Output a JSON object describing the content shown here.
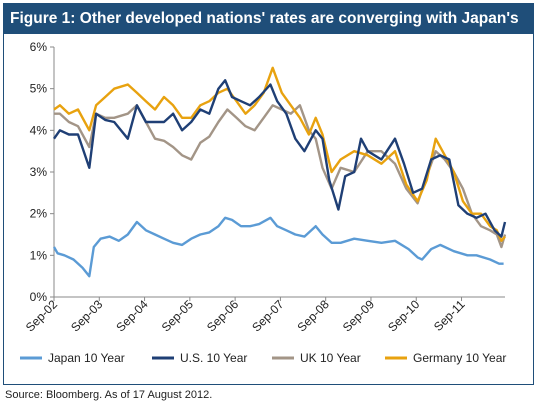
{
  "title": "Figure 1: Other developed nations' rates are converging with Japan's",
  "source": "Source: Bloomberg. As of 17 August 2012.",
  "chart_data": {
    "type": "line",
    "title": "Figure 1: Other developed nations' rates are converging with Japan's",
    "xlabel": "",
    "ylabel": "",
    "ylim": [
      0,
      6
    ],
    "xlim": [
      2002.67,
      2012.63
    ],
    "y_ticks": [
      "0%",
      "1%",
      "2%",
      "3%",
      "4%",
      "5%",
      "6%"
    ],
    "y_tick_values": [
      0,
      1,
      2,
      3,
      4,
      5,
      6
    ],
    "x_ticks": [
      "Sep-02",
      "Sep-03",
      "Sep-04",
      "Sep-05",
      "Sep-06",
      "Sep-07",
      "Sep-08",
      "Sep-09",
      "Sep-10",
      "Sep-11"
    ],
    "x_tick_values": [
      2002.67,
      2003.67,
      2004.67,
      2005.67,
      2006.67,
      2007.67,
      2008.67,
      2009.67,
      2010.67,
      2011.67
    ],
    "grid": false,
    "legend": "bottom",
    "series": [
      {
        "name": "Japan 10 Year",
        "color": "#5b9bd5",
        "x": [
          2002.67,
          2002.75,
          2002.9,
          2003.1,
          2003.3,
          2003.45,
          2003.55,
          2003.7,
          2003.9,
          2004.1,
          2004.3,
          2004.5,
          2004.7,
          2004.9,
          2005.1,
          2005.3,
          2005.5,
          2005.7,
          2005.9,
          2006.1,
          2006.3,
          2006.45,
          2006.6,
          2006.8,
          2007.0,
          2007.2,
          2007.45,
          2007.6,
          2007.8,
          2008.0,
          2008.2,
          2008.45,
          2008.6,
          2008.8,
          2009.0,
          2009.3,
          2009.6,
          2009.9,
          2010.2,
          2010.5,
          2010.7,
          2010.8,
          2011.0,
          2011.2,
          2011.5,
          2011.8,
          2012.0,
          2012.3,
          2012.5,
          2012.6
        ],
        "values": [
          1.2,
          1.05,
          1.0,
          0.9,
          0.7,
          0.5,
          1.2,
          1.4,
          1.45,
          1.35,
          1.5,
          1.8,
          1.6,
          1.5,
          1.4,
          1.3,
          1.25,
          1.4,
          1.5,
          1.55,
          1.7,
          1.9,
          1.85,
          1.7,
          1.7,
          1.75,
          1.9,
          1.7,
          1.6,
          1.5,
          1.45,
          1.7,
          1.5,
          1.3,
          1.3,
          1.4,
          1.35,
          1.3,
          1.35,
          1.15,
          0.95,
          0.9,
          1.15,
          1.25,
          1.1,
          1.0,
          1.0,
          0.9,
          0.8,
          0.8
        ]
      },
      {
        "name": "U.S. 10 Year",
        "color": "#1f3f75",
        "x": [
          2002.67,
          2002.8,
          2003.0,
          2003.2,
          2003.45,
          2003.6,
          2003.8,
          2004.0,
          2004.3,
          2004.5,
          2004.7,
          2004.9,
          2005.1,
          2005.3,
          2005.5,
          2005.7,
          2005.9,
          2006.1,
          2006.3,
          2006.45,
          2006.6,
          2006.8,
          2007.0,
          2007.2,
          2007.45,
          2007.6,
          2007.8,
          2008.0,
          2008.2,
          2008.45,
          2008.6,
          2008.75,
          2008.95,
          2009.1,
          2009.3,
          2009.45,
          2009.6,
          2009.9,
          2010.2,
          2010.4,
          2010.6,
          2010.8,
          2011.0,
          2011.2,
          2011.4,
          2011.6,
          2011.8,
          2012.0,
          2012.2,
          2012.4,
          2012.55,
          2012.63
        ],
        "values": [
          3.8,
          4.0,
          3.9,
          3.9,
          3.1,
          4.4,
          4.25,
          4.2,
          3.8,
          4.6,
          4.2,
          4.2,
          4.2,
          4.4,
          4.0,
          4.2,
          4.5,
          4.4,
          5.0,
          5.2,
          4.8,
          4.7,
          4.6,
          4.8,
          5.1,
          4.7,
          4.4,
          3.8,
          3.5,
          4.0,
          3.8,
          2.8,
          2.1,
          2.9,
          3.0,
          3.8,
          3.5,
          3.3,
          3.8,
          3.2,
          2.5,
          2.6,
          3.3,
          3.4,
          3.3,
          2.2,
          2.0,
          1.9,
          2.0,
          1.6,
          1.45,
          1.8
        ]
      },
      {
        "name": "UK 10 Year",
        "color": "#a39587",
        "x": [
          2002.67,
          2002.8,
          2003.0,
          2003.2,
          2003.45,
          2003.6,
          2003.8,
          2004.0,
          2004.3,
          2004.5,
          2004.7,
          2004.9,
          2005.1,
          2005.3,
          2005.5,
          2005.7,
          2005.9,
          2006.1,
          2006.3,
          2006.5,
          2006.7,
          2006.9,
          2007.1,
          2007.3,
          2007.5,
          2007.7,
          2007.9,
          2008.1,
          2008.3,
          2008.45,
          2008.6,
          2008.8,
          2009.0,
          2009.3,
          2009.6,
          2009.9,
          2010.2,
          2010.45,
          2010.7,
          2010.9,
          2011.1,
          2011.3,
          2011.5,
          2011.7,
          2011.9,
          2012.1,
          2012.3,
          2012.45,
          2012.55,
          2012.63
        ],
        "values": [
          4.4,
          4.4,
          4.2,
          4.1,
          3.6,
          4.4,
          4.3,
          4.3,
          4.4,
          4.6,
          4.2,
          3.8,
          3.75,
          3.6,
          3.4,
          3.3,
          3.7,
          3.85,
          4.2,
          4.5,
          4.3,
          4.1,
          4.0,
          4.3,
          4.6,
          4.5,
          4.4,
          4.6,
          4.0,
          3.8,
          3.1,
          2.6,
          3.1,
          3.0,
          3.5,
          3.5,
          3.2,
          2.6,
          2.25,
          2.9,
          3.5,
          3.3,
          3.0,
          2.6,
          2.0,
          1.7,
          1.6,
          1.5,
          1.2,
          1.5
        ]
      },
      {
        "name": "Germany 10 Year",
        "color": "#e8a20f",
        "x": [
          2002.67,
          2002.8,
          2003.0,
          2003.2,
          2003.45,
          2003.6,
          2003.8,
          2004.0,
          2004.3,
          2004.5,
          2004.7,
          2004.9,
          2005.1,
          2005.3,
          2005.5,
          2005.7,
          2005.9,
          2006.1,
          2006.3,
          2006.5,
          2006.7,
          2006.9,
          2007.1,
          2007.3,
          2007.5,
          2007.7,
          2007.9,
          2008.1,
          2008.3,
          2008.45,
          2008.6,
          2008.8,
          2009.0,
          2009.3,
          2009.6,
          2009.9,
          2010.2,
          2010.45,
          2010.7,
          2010.9,
          2011.1,
          2011.3,
          2011.5,
          2011.7,
          2011.9,
          2012.1,
          2012.3,
          2012.45,
          2012.55,
          2012.63
        ],
        "values": [
          4.5,
          4.6,
          4.4,
          4.5,
          4.0,
          4.6,
          4.8,
          5.0,
          5.1,
          4.9,
          4.7,
          4.5,
          4.8,
          4.6,
          4.3,
          4.3,
          4.6,
          4.7,
          4.9,
          5.0,
          4.7,
          4.4,
          4.6,
          4.9,
          5.5,
          4.9,
          4.6,
          4.3,
          3.9,
          4.3,
          3.9,
          3.0,
          3.3,
          3.5,
          3.4,
          3.2,
          3.5,
          2.7,
          2.3,
          2.8,
          3.8,
          3.4,
          3.0,
          2.3,
          2.0,
          2.0,
          1.7,
          1.6,
          1.35,
          1.45
        ]
      }
    ]
  }
}
